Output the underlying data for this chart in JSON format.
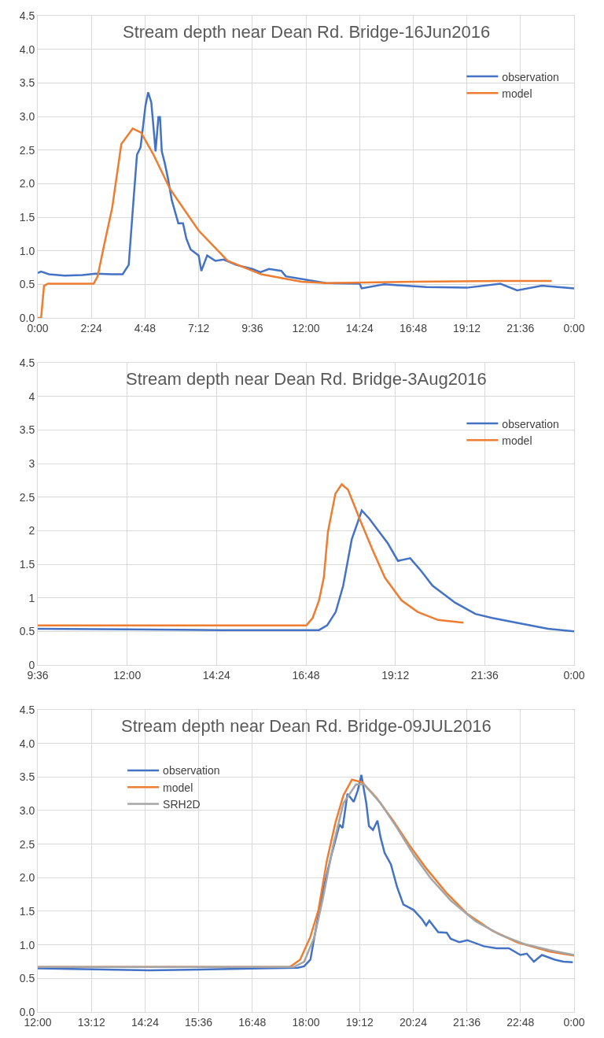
{
  "chart_data": [
    {
      "type": "line",
      "title": "Stream depth near Dean Rd. Bridge-16Jun2016",
      "legend": "top right",
      "grid": true,
      "marker": "none",
      "line_style": "solid",
      "xlim": [
        0,
        24
      ],
      "xticks": [
        {
          "value": 0,
          "label": "0:00"
        },
        {
          "value": 2.4,
          "label": "2:24"
        },
        {
          "value": 4.8,
          "label": "4:48"
        },
        {
          "value": 7.2,
          "label": "7:12"
        },
        {
          "value": 9.6,
          "label": "9:36"
        },
        {
          "value": 12,
          "label": "12:00"
        },
        {
          "value": 14.4,
          "label": "14:24"
        },
        {
          "value": 16.8,
          "label": "16:48"
        },
        {
          "value": 19.2,
          "label": "19:12"
        },
        {
          "value": 21.6,
          "label": "21:36"
        },
        {
          "value": 24,
          "label": "0:00"
        }
      ],
      "ylim": [
        0,
        4.5
      ],
      "yticks": [
        {
          "value": 0,
          "label": "0.0"
        },
        {
          "value": 0.5,
          "label": "0.5"
        },
        {
          "value": 1,
          "label": "1.0"
        },
        {
          "value": 1.5,
          "label": "1.5"
        },
        {
          "value": 2,
          "label": "2.0"
        },
        {
          "value": 2.5,
          "label": "2.5"
        },
        {
          "value": 3,
          "label": "3.0"
        },
        {
          "value": 3.5,
          "label": "3.5"
        },
        {
          "value": 4,
          "label": "4.0"
        },
        {
          "value": 4.5,
          "label": "4.5"
        }
      ],
      "series": [
        {
          "name": "observation",
          "color": "#4472c4",
          "x": [
            0,
            0.15,
            0.5,
            1.2,
            2.0,
            2.6,
            3.3,
            3.8,
            4.07,
            4.25,
            4.44,
            4.6,
            4.82,
            4.94,
            5.08,
            5.2,
            5.27,
            5.4,
            5.47,
            5.55,
            5.68,
            5.82,
            6.0,
            6.29,
            6.5,
            6.65,
            6.84,
            7.2,
            7.32,
            7.58,
            7.95,
            8.32,
            8.88,
            9.6,
            9.96,
            10.35,
            10.9,
            11.1,
            11.8,
            12.9,
            14.4,
            14.5,
            15.5,
            17.4,
            19.2,
            20.7,
            21.45,
            22.56,
            24
          ],
          "values": [
            0.67,
            0.69,
            0.65,
            0.63,
            0.64,
            0.66,
            0.65,
            0.65,
            0.79,
            1.6,
            2.43,
            2.54,
            3.16,
            3.36,
            3.21,
            2.76,
            2.48,
            2.99,
            2.99,
            2.48,
            2.31,
            2.09,
            1.75,
            1.41,
            1.41,
            1.18,
            1.02,
            0.93,
            0.7,
            0.93,
            0.85,
            0.87,
            0.79,
            0.73,
            0.68,
            0.73,
            0.7,
            0.62,
            0.58,
            0.52,
            0.51,
            0.44,
            0.5,
            0.46,
            0.45,
            0.51,
            0.41,
            0.48,
            0.44
          ]
        },
        {
          "name": "model",
          "color": "#ed7d31",
          "x": [
            0,
            0.15,
            0.28,
            0.46,
            2.5,
            2.68,
            2.96,
            3.33,
            3.74,
            4.25,
            4.62,
            5.18,
            5.92,
            7.2,
            8.5,
            10.0,
            11.8,
            12.9,
            16.8,
            20.7,
            23.0
          ],
          "values": [
            0,
            0,
            0.48,
            0.51,
            0.51,
            0.62,
            1.07,
            1.64,
            2.59,
            2.82,
            2.76,
            2.43,
            1.92,
            1.3,
            0.85,
            0.65,
            0.54,
            0.52,
            0.54,
            0.55,
            0.55
          ]
        }
      ]
    },
    {
      "type": "line",
      "title": "Stream depth near Dean Rd. Bridge-3Aug2016",
      "legend": "top right",
      "grid": true,
      "marker": "none",
      "line_style": "solid",
      "xlim": [
        9.6,
        24
      ],
      "xticks": [
        {
          "value": 9.6,
          "label": "9:36"
        },
        {
          "value": 12,
          "label": "12:00"
        },
        {
          "value": 14.4,
          "label": "14:24"
        },
        {
          "value": 16.8,
          "label": "16:48"
        },
        {
          "value": 19.2,
          "label": "19:12"
        },
        {
          "value": 21.6,
          "label": "21:36"
        },
        {
          "value": 24,
          "label": "0:00"
        }
      ],
      "ylim": [
        0,
        4.5
      ],
      "yticks": [
        0,
        0.5,
        1,
        1.5,
        2,
        2.5,
        3,
        3.5,
        4,
        4.5
      ],
      "series": [
        {
          "name": "observation",
          "color": "#4472c4",
          "x": [
            9.6,
            12,
            14.5,
            17.15,
            17.37,
            17.6,
            17.8,
            18.03,
            18.3,
            18.5,
            19.0,
            19.27,
            19.6,
            19.88,
            20.2,
            20.8,
            21.35,
            21.8,
            22.45,
            23.3,
            24
          ],
          "values": [
            0.54,
            0.53,
            0.52,
            0.52,
            0.59,
            0.79,
            1.18,
            1.87,
            2.3,
            2.18,
            1.81,
            1.55,
            1.59,
            1.41,
            1.18,
            0.93,
            0.76,
            0.7,
            0.63,
            0.54,
            0.5
          ]
        },
        {
          "name": "model",
          "color": "#ed7d31",
          "x": [
            9.6,
            16.81,
            16.98,
            17.15,
            17.28,
            17.39,
            17.59,
            17.76,
            17.93,
            18.26,
            18.6,
            18.92,
            19.37,
            19.8,
            20.35,
            21.03
          ],
          "values": [
            0.59,
            0.59,
            0.7,
            0.96,
            1.3,
            1.98,
            2.55,
            2.69,
            2.61,
            2.15,
            1.7,
            1.3,
            0.96,
            0.79,
            0.67,
            0.63
          ]
        }
      ]
    },
    {
      "type": "line",
      "title": "Stream depth near Dean Rd. Bridge-09JUL2016",
      "legend": "top left",
      "grid": true,
      "marker": "none",
      "line_style": "solid",
      "xlim": [
        12,
        24
      ],
      "xticks": [
        {
          "value": 12,
          "label": "12:00"
        },
        {
          "value": 13.2,
          "label": "13:12"
        },
        {
          "value": 14.4,
          "label": "14:24"
        },
        {
          "value": 15.6,
          "label": "15:36"
        },
        {
          "value": 16.8,
          "label": "16:48"
        },
        {
          "value": 18,
          "label": "18:00"
        },
        {
          "value": 19.2,
          "label": "19:12"
        },
        {
          "value": 20.4,
          "label": "20:24"
        },
        {
          "value": 21.6,
          "label": "21:36"
        },
        {
          "value": 22.8,
          "label": "22:48"
        },
        {
          "value": 24,
          "label": "0:00"
        }
      ],
      "ylim": [
        0,
        4.5
      ],
      "yticks": [
        {
          "value": 0,
          "label": "0.0"
        },
        {
          "value": 0.5,
          "label": "0.5"
        },
        {
          "value": 1,
          "label": "1.0"
        },
        {
          "value": 1.5,
          "label": "1.5"
        },
        {
          "value": 2,
          "label": "2.0"
        },
        {
          "value": 2.5,
          "label": "2.5"
        },
        {
          "value": 3,
          "label": "3.0"
        },
        {
          "value": 3.5,
          "label": "3.5"
        },
        {
          "value": 4,
          "label": "4.0"
        },
        {
          "value": 4.5,
          "label": "4.5"
        }
      ],
      "series": [
        {
          "name": "observation",
          "color": "#4472c4",
          "x": [
            12,
            14.5,
            17.0,
            17.82,
            17.96,
            18.1,
            18.19,
            18.38,
            18.56,
            18.75,
            18.82,
            18.93,
            19.07,
            19.16,
            19.24,
            19.35,
            19.41,
            19.5,
            19.6,
            19.67,
            19.76,
            19.9,
            20.04,
            20.18,
            20.41,
            20.6,
            20.69,
            20.76,
            20.96,
            21.15,
            21.24,
            21.43,
            21.61,
            21.98,
            22.26,
            22.54,
            22.8,
            22.94,
            23.1,
            23.28,
            23.57,
            23.76,
            23.97
          ],
          "values": [
            0.65,
            0.62,
            0.65,
            0.66,
            0.68,
            0.78,
            1.12,
            1.8,
            2.31,
            2.79,
            2.74,
            3.25,
            3.13,
            3.3,
            3.53,
            3.11,
            2.77,
            2.71,
            2.85,
            2.6,
            2.37,
            2.2,
            1.86,
            1.6,
            1.52,
            1.38,
            1.29,
            1.36,
            1.19,
            1.18,
            1.09,
            1.04,
            1.07,
            0.98,
            0.95,
            0.95,
            0.85,
            0.87,
            0.75,
            0.85,
            0.78,
            0.75,
            0.74
          ]
        },
        {
          "name": "model",
          "color": "#ed7d31",
          "x": [
            12,
            17.64,
            17.87,
            18.1,
            18.28,
            18.47,
            18.66,
            18.84,
            19.03,
            19.26,
            19.58,
            19.95,
            20.32,
            20.69,
            21.15,
            21.61,
            22.17,
            22.72,
            23.46,
            24
          ],
          "values": [
            0.67,
            0.67,
            0.78,
            1.12,
            1.52,
            2.26,
            2.82,
            3.23,
            3.46,
            3.42,
            3.19,
            2.85,
            2.48,
            2.14,
            1.77,
            1.46,
            1.21,
            1.04,
            0.9,
            0.84
          ]
        },
        {
          "name": "SRH2D",
          "color": "#a5a5a5",
          "x": [
            12,
            17.73,
            17.96,
            18.19,
            18.38,
            18.61,
            18.84,
            19.12,
            19.3,
            19.67,
            20.04,
            20.41,
            20.78,
            21.24,
            21.8,
            22.35,
            22.9,
            23.46,
            24
          ],
          "values": [
            0.67,
            0.67,
            0.75,
            1.12,
            1.69,
            2.48,
            3.11,
            3.39,
            3.39,
            3.11,
            2.74,
            2.34,
            2.0,
            1.66,
            1.35,
            1.15,
            1.01,
            0.92,
            0.85
          ]
        }
      ]
    }
  ]
}
